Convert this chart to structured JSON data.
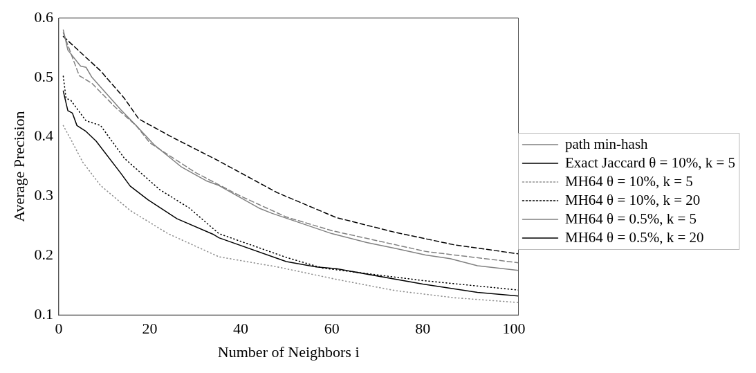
{
  "chart_data": {
    "type": "line",
    "xlabel": "Number of Neighbors i",
    "ylabel": "Average Precision",
    "xlim": [
      0,
      101
    ],
    "ylim": [
      0.1,
      0.6
    ],
    "xticks": [
      0,
      20,
      40,
      60,
      80,
      100
    ],
    "yticks": [
      0.1,
      0.2,
      0.3,
      0.4,
      0.5,
      0.6
    ],
    "grid": false,
    "legend": "right",
    "marker": "none",
    "series": [
      {
        "name": "path min-hash",
        "color": "#808080",
        "line_style": "solid",
        "x": [
          1,
          2,
          4.8,
          6,
          7.3,
          13.7,
          17,
          20.9,
          27,
          32.4,
          35.2,
          44,
          46.9,
          60,
          67.7,
          74,
          80.6,
          86,
          92,
          101
        ],
        "values": [
          0.58,
          0.546,
          0.519,
          0.517,
          0.5,
          0.445,
          0.419,
          0.387,
          0.349,
          0.326,
          0.318,
          0.28,
          0.271,
          0.237,
          0.222,
          0.212,
          0.201,
          0.195,
          0.183,
          0.175
        ]
      },
      {
        "name": "Exact Jaccard θ = 10%, k = 5",
        "color": "#000000",
        "line_style": "solid",
        "x": [
          1,
          2,
          3,
          4,
          6,
          8.2,
          13.7,
          15.7,
          19.6,
          26,
          33.9,
          35.2,
          50,
          56.6,
          61,
          80,
          92,
          101
        ],
        "values": [
          0.477,
          0.444,
          0.44,
          0.419,
          0.409,
          0.393,
          0.338,
          0.317,
          0.294,
          0.262,
          0.236,
          0.23,
          0.19,
          0.181,
          0.178,
          0.152,
          0.138,
          0.132
        ]
      },
      {
        "name": "MH64 θ = 10%, k = 5",
        "color": "#909090",
        "line_style": "dotted",
        "x": [
          1,
          2.7,
          5.3,
          9.2,
          15.7,
          24,
          35.2,
          48,
          61,
          74,
          87,
          101
        ],
        "values": [
          0.419,
          0.395,
          0.357,
          0.318,
          0.276,
          0.237,
          0.198,
          0.181,
          0.16,
          0.141,
          0.129,
          0.121
        ]
      },
      {
        "name": "MH64 θ = 10%, k = 20",
        "color": "#000000",
        "line_style": "dotted",
        "x": [
          1,
          1.6,
          2.7,
          6,
          9.2,
          14.4,
          22.2,
          28.7,
          35.2,
          50,
          58,
          80,
          101
        ],
        "values": [
          0.502,
          0.465,
          0.461,
          0.427,
          0.419,
          0.364,
          0.311,
          0.28,
          0.237,
          0.197,
          0.179,
          0.158,
          0.142
        ]
      },
      {
        "name": "MH64 θ = 0.5%, k = 5",
        "color": "#808080",
        "line_style": "dashed",
        "x": [
          1,
          4.5,
          7.3,
          12.4,
          17,
          20,
          30,
          40,
          50,
          60,
          80.6,
          101
        ],
        "values": [
          0.575,
          0.503,
          0.49,
          0.45,
          0.419,
          0.39,
          0.34,
          0.3,
          0.265,
          0.242,
          0.207,
          0.188
        ]
      },
      {
        "name": "MH64 θ = 0.5%, k = 20",
        "color": "#000000",
        "line_style": "dashed",
        "x": [
          1,
          3.4,
          9.2,
          14.4,
          17.6,
          25,
          35,
          48,
          61,
          74,
          87,
          101
        ],
        "values": [
          0.569,
          0.552,
          0.511,
          0.465,
          0.43,
          0.399,
          0.36,
          0.306,
          0.264,
          0.239,
          0.218,
          0.203
        ]
      }
    ]
  }
}
